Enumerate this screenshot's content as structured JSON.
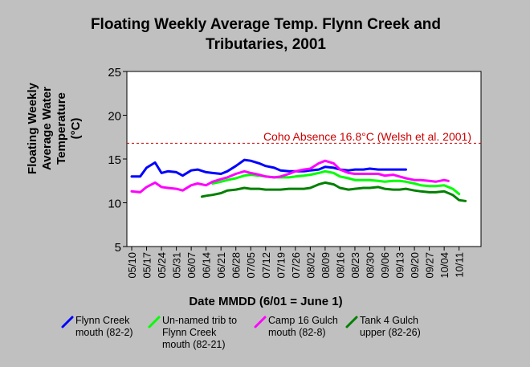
{
  "chart_data": {
    "type": "line",
    "title_lines": [
      "Floating Weekly Average Temp. Flynn Creek and",
      "Tributaries, 2001"
    ],
    "xlabel": "Date MMDD (6/01 = June 1)",
    "ylabel_lines": [
      "Floating Weekly",
      "Average Water",
      "Temperature",
      "(°C)"
    ],
    "ylim": [
      5,
      25
    ],
    "yticks": [
      5,
      10,
      15,
      20,
      25
    ],
    "xlim": [
      "05/10",
      "10/18"
    ],
    "x_tick_labels": [
      "05/10",
      "05/17",
      "05/24",
      "05/31",
      "06/07",
      "06/14",
      "06/21",
      "06/28",
      "07/05",
      "07/12",
      "07/19",
      "07/26",
      "08/02",
      "08/09",
      "08/16",
      "08/23",
      "08/30",
      "09/06",
      "09/13",
      "09/20",
      "09/27",
      "10/04",
      "10/11"
    ],
    "grid": false,
    "legend_position": "bottom",
    "reference_line": {
      "value": 16.8,
      "label": "Coho Absence 16.8°C (Welsh et al. 2001)",
      "color": "#cc0000"
    },
    "series": [
      {
        "name": "Flynn Creek mouth (82-2)",
        "color": "#0000ff",
        "x": [
          "05/10",
          "05/14",
          "05/17",
          "05/21",
          "05/24",
          "05/27",
          "05/31",
          "06/03",
          "06/07",
          "06/10",
          "06/14",
          "06/17",
          "06/21",
          "06/24",
          "06/28",
          "07/02",
          "07/05",
          "07/09",
          "07/12",
          "07/16",
          "07/19",
          "07/23",
          "07/26",
          "07/30",
          "08/02",
          "08/06",
          "08/09",
          "08/13",
          "08/16",
          "08/20",
          "08/23",
          "08/27",
          "08/30",
          "09/03",
          "09/06",
          "09/10",
          "09/13",
          "09/16"
        ],
        "y": [
          13.0,
          13.0,
          14.0,
          14.6,
          13.4,
          13.6,
          13.5,
          13.1,
          13.7,
          13.8,
          13.5,
          13.4,
          13.3,
          13.6,
          14.2,
          14.9,
          14.8,
          14.5,
          14.2,
          14.0,
          13.7,
          13.6,
          13.6,
          13.6,
          13.7,
          13.8,
          14.1,
          14.0,
          13.8,
          13.7,
          13.8,
          13.8,
          13.9,
          13.8,
          13.8,
          13.8,
          13.8,
          13.8
        ]
      },
      {
        "name": "Un-named trib to Flynn Creek mouth (82-21)",
        "color": "#00ff00",
        "x": [
          "06/17",
          "06/21",
          "06/24",
          "06/28",
          "07/02",
          "07/05",
          "07/09",
          "07/12",
          "07/16",
          "07/19",
          "07/23",
          "07/26",
          "07/30",
          "08/02",
          "08/06",
          "08/09",
          "08/13",
          "08/16",
          "08/20",
          "08/23",
          "08/27",
          "08/30",
          "09/03",
          "09/06",
          "09/10",
          "09/13",
          "09/16",
          "09/20",
          "09/23",
          "09/27",
          "09/30",
          "10/04",
          "10/08",
          "10/11"
        ],
        "y": [
          12.2,
          12.4,
          12.6,
          12.8,
          13.1,
          13.2,
          13.1,
          13.0,
          12.9,
          12.9,
          12.9,
          13.0,
          13.1,
          13.2,
          13.4,
          13.6,
          13.4,
          13.0,
          12.8,
          12.6,
          12.6,
          12.6,
          12.5,
          12.4,
          12.5,
          12.5,
          12.4,
          12.2,
          12.0,
          11.9,
          11.9,
          12.0,
          11.6,
          11.0
        ]
      },
      {
        "name": "Camp 16 Gulch mouth (82-8)",
        "color": "#ff00ff",
        "x": [
          "05/10",
          "05/14",
          "05/17",
          "05/21",
          "05/24",
          "05/27",
          "05/31",
          "06/03",
          "06/07",
          "06/10",
          "06/14",
          "06/17",
          "06/21",
          "06/24",
          "06/28",
          "07/02",
          "07/05",
          "07/09",
          "07/12",
          "07/16",
          "07/19",
          "07/23",
          "07/26",
          "07/30",
          "08/02",
          "08/06",
          "08/09",
          "08/13",
          "08/16",
          "08/20",
          "08/23",
          "08/27",
          "08/30",
          "09/03",
          "09/06",
          "09/10",
          "09/13",
          "09/16",
          "09/20",
          "09/23",
          "09/27",
          "09/30",
          "10/04",
          "10/06"
        ],
        "y": [
          11.3,
          11.2,
          11.8,
          12.3,
          11.8,
          11.7,
          11.6,
          11.4,
          12.0,
          12.2,
          12.0,
          12.4,
          12.7,
          12.9,
          13.3,
          13.6,
          13.4,
          13.2,
          13.0,
          12.9,
          13.0,
          13.3,
          13.6,
          13.8,
          13.9,
          14.5,
          14.8,
          14.5,
          13.8,
          13.4,
          13.3,
          13.3,
          13.3,
          13.3,
          13.1,
          13.2,
          13.0,
          12.8,
          12.6,
          12.6,
          12.5,
          12.4,
          12.6,
          12.5
        ]
      },
      {
        "name": "Tank 4 Gulch upper (82-26)",
        "color": "#008000",
        "x": [
          "06/12",
          "06/14",
          "06/17",
          "06/21",
          "06/24",
          "06/28",
          "07/02",
          "07/05",
          "07/09",
          "07/12",
          "07/16",
          "07/19",
          "07/23",
          "07/26",
          "07/30",
          "08/02",
          "08/06",
          "08/09",
          "08/13",
          "08/16",
          "08/20",
          "08/23",
          "08/27",
          "08/30",
          "09/03",
          "09/06",
          "09/10",
          "09/13",
          "09/16",
          "09/20",
          "09/23",
          "09/27",
          "09/30",
          "10/04",
          "10/08",
          "10/11",
          "10/14"
        ],
        "y": [
          10.7,
          10.8,
          10.9,
          11.1,
          11.4,
          11.5,
          11.7,
          11.6,
          11.6,
          11.5,
          11.5,
          11.5,
          11.6,
          11.6,
          11.6,
          11.7,
          12.1,
          12.3,
          12.1,
          11.7,
          11.5,
          11.6,
          11.7,
          11.7,
          11.8,
          11.6,
          11.5,
          11.5,
          11.6,
          11.4,
          11.3,
          11.2,
          11.2,
          11.3,
          10.9,
          10.3,
          10.2
        ]
      }
    ]
  }
}
